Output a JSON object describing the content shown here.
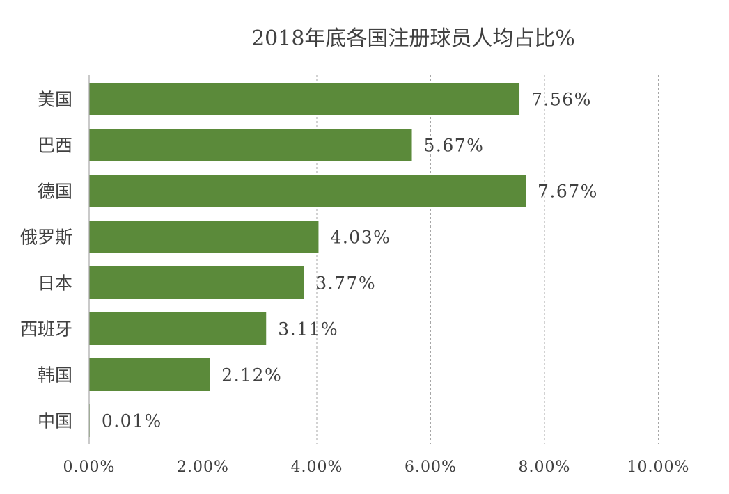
{
  "chart_data": {
    "type": "bar",
    "orientation": "horizontal",
    "title": "2018年底各国注册球员人均占比%",
    "xlabel": "",
    "ylabel": "",
    "categories": [
      "美国",
      "巴西",
      "德国",
      "俄罗斯",
      "日本",
      "西班牙",
      "韩国",
      "中国"
    ],
    "values": [
      7.56,
      5.67,
      7.67,
      4.03,
      3.77,
      3.11,
      2.12,
      0.01
    ],
    "data_labels": [
      "7.56%",
      "5.67%",
      "7.67%",
      "4.03%",
      "3.77%",
      "3.11%",
      "2.12%",
      "0.01%"
    ],
    "xlim": [
      0,
      10
    ],
    "xticks": [
      0,
      2,
      4,
      6,
      8,
      10
    ],
    "xtick_labels": [
      "0.00%",
      "2.00%",
      "4.00%",
      "6.00%",
      "8.00%",
      "10.00%"
    ],
    "bar_color": "#5b8a3a",
    "grid": "vertical dashed",
    "legend": "none"
  }
}
